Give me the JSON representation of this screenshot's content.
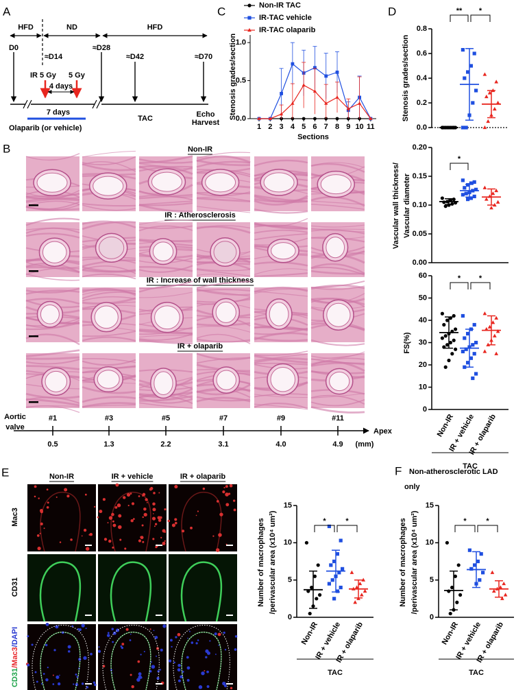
{
  "panel_a": {
    "label": "A",
    "periods": [
      "HFD",
      "ND",
      "HFD"
    ],
    "days": [
      "D0",
      "≈D14",
      "≈D28",
      "≈D42",
      "≈D70"
    ],
    "ir_label": "IR 5 Gy",
    "ir_label_2": "5 Gy",
    "interval": "4 days",
    "duration": "7 days",
    "treatment": "Olaparib (or vehicle)",
    "surgery": "TAC",
    "endpoint": [
      "Echo",
      "Harvest"
    ]
  },
  "panel_b": {
    "label": "B",
    "rows": [
      "Non-IR",
      "IR : Atherosclerosis",
      "IR :  Increase of wall thickness",
      "IR + olaparib"
    ],
    "sections": [
      "#1",
      "#3",
      "#5",
      "#7",
      "#9",
      "#11"
    ],
    "distances": [
      "0.5",
      "1.3",
      "2.2",
      "3.1",
      "4.0",
      "4.9"
    ],
    "unit": "(mm)",
    "start": [
      "Aortic",
      "valve"
    ],
    "end": "Apex"
  },
  "panel_e": {
    "label": "E",
    "columns": [
      "Non-IR",
      "IR + vehicle",
      "IR + olaparib"
    ],
    "rows": [
      "Mac3",
      "CD31",
      "CD31/Mac3/DAPI"
    ],
    "row_colors": [
      "#e8262b",
      "#1fa34a"
    ],
    "merge_colors": [
      "#1fa34a",
      "#e8262b",
      "#2a3ad0"
    ]
  },
  "chart_data": [
    {
      "type": "line",
      "panel": "C",
      "ylabel": "Stenosis grades/section",
      "xlabel": "Sections",
      "xlim": [
        0.2,
        11.5
      ],
      "xticks": [
        1,
        2,
        3,
        4,
        5,
        6,
        7,
        8,
        9,
        10,
        11
      ],
      "x": [
        1,
        2,
        3,
        4,
        5,
        6,
        7,
        8,
        9,
        10,
        11
      ],
      "ylim": [
        0,
        1.1
      ],
      "yticks": [
        {
          "value": 0,
          "label": "0.0"
        },
        {
          "value": 0.5,
          "label": "0.5"
        },
        {
          "value": 1,
          "label": "1.0"
        }
      ],
      "series": [
        {
          "name": "Non-IR TAC",
          "color": "#000000",
          "marker": "circle",
          "values": [
            0,
            0,
            0,
            0,
            0,
            0,
            0,
            0,
            0,
            0,
            0
          ]
        },
        {
          "name": "IR-TAC vehicle",
          "color": "#1f4fe0",
          "marker": "square",
          "values": [
            0,
            0,
            0.33,
            0.72,
            0.6,
            0.67,
            0.56,
            0.61,
            0.11,
            0.28,
            0
          ],
          "errors": [
            0,
            0,
            0.33,
            0.28,
            0.3,
            0.28,
            0.3,
            0.27,
            0.11,
            0.28,
            0
          ]
        },
        {
          "name": "IR-TAC olaparib",
          "color": "#e8261f",
          "marker": "triangle",
          "values": [
            0,
            0,
            0.06,
            0.2,
            0.44,
            0.36,
            0.2,
            0.28,
            0.13,
            0.2,
            0
          ],
          "errors": [
            0,
            0,
            0.12,
            0.26,
            0.3,
            0.3,
            0.25,
            0.2,
            0.13,
            0.35,
            0
          ]
        }
      ]
    },
    {
      "type": "dot",
      "panel": "D",
      "ylabel": [
        "Stenosis grades/section"
      ],
      "baseline": "dotted",
      "ylim": [
        0,
        0.8
      ],
      "yticks": [
        {
          "value": 0,
          "label": "0.0"
        },
        {
          "value": 0.2,
          "label": "0.2"
        },
        {
          "value": 0.4,
          "label": "0.4"
        },
        {
          "value": 0.6,
          "label": "0.6"
        },
        {
          "value": 0.8,
          "label": "0.8"
        }
      ],
      "significance": [
        "**",
        "*"
      ],
      "groups": [
        {
          "color": "#000000",
          "marker": "circle",
          "points": [
            0,
            0,
            0,
            0,
            0,
            0,
            0,
            0,
            0,
            0,
            0
          ],
          "mean": 0,
          "sd": 0
        },
        {
          "color": "#1f4fe0",
          "marker": "square",
          "points": [
            0.63,
            0.6,
            0.5,
            0.45,
            0.4,
            0.3,
            0.2,
            0.1,
            0,
            0
          ],
          "mean": 0.35,
          "sd": 0.29
        },
        {
          "color": "#e8261f",
          "marker": "triangle",
          "points": [
            0.43,
            0.37,
            0.3,
            0.28,
            0.25,
            0.2,
            0.15,
            0.1,
            0.05,
            0
          ],
          "mean": 0.19,
          "sd": 0.11
        }
      ]
    },
    {
      "type": "dot",
      "ylabel": [
        "Vascular wall thickness/",
        "Vascular diameter"
      ],
      "baseline": "solid",
      "ylim": [
        0,
        0.2
      ],
      "yticks": [
        {
          "value": 0,
          "label": "0.00"
        },
        {
          "value": 0.05,
          "label": "0.05"
        },
        {
          "value": 0.1,
          "label": "0.10"
        },
        {
          "value": 0.15,
          "label": "0.15"
        },
        {
          "value": 0.2,
          "label": "0.20"
        }
      ],
      "significance": [
        "*"
      ],
      "groups": [
        {
          "color": "#000000",
          "marker": "circle",
          "points": [
            0.112,
            0.11,
            0.108,
            0.106,
            0.105,
            0.104,
            0.102,
            0.1,
            0.098
          ],
          "mean": 0.106,
          "sd": 0.005
        },
        {
          "color": "#1f4fe0",
          "marker": "square",
          "points": [
            0.143,
            0.14,
            0.138,
            0.135,
            0.13,
            0.127,
            0.125,
            0.122,
            0.12,
            0.118,
            0.115,
            0.112,
            0.11
          ],
          "mean": 0.125,
          "sd": 0.011
        },
        {
          "color": "#e8261f",
          "marker": "triangle",
          "points": [
            0.13,
            0.125,
            0.12,
            0.115,
            0.11,
            0.105,
            0.1,
            0.095
          ],
          "mean": 0.114,
          "sd": 0.014
        }
      ]
    },
    {
      "type": "dot",
      "ylabel": [
        "FS(%)"
      ],
      "baseline": "solid",
      "ylim": [
        0,
        60
      ],
      "yticks": [
        0,
        10,
        20,
        30,
        40,
        50,
        60
      ],
      "significance": [
        "*",
        "*"
      ],
      "categories": [
        "Non-IR",
        "IR + vehicle",
        "IR + olaparib"
      ],
      "group_label": "TAC",
      "groups": [
        {
          "color": "#000000",
          "marker": "circle",
          "points": [
            43,
            42,
            41,
            40,
            38,
            36,
            35,
            34,
            33,
            32,
            31,
            30,
            29,
            28,
            27,
            25,
            22,
            19
          ],
          "mean": 34.5,
          "sd": 7
        },
        {
          "color": "#1f4fe0",
          "marker": "square",
          "points": [
            42,
            38,
            36,
            34,
            32,
            30,
            29,
            28,
            27,
            26,
            25,
            23,
            21,
            19,
            16,
            14
          ],
          "mean": 27.5,
          "sd": 8.5
        },
        {
          "color": "#e8261f",
          "marker": "triangle",
          "points": [
            43,
            41,
            39,
            37,
            36,
            35,
            33,
            31,
            29,
            26,
            25
          ],
          "mean": 35.5,
          "sd": 6.5
        }
      ]
    },
    {
      "type": "dot",
      "ylabel": [
        "Number of macrophages",
        "/perivascular area (x10⁴ um²)"
      ],
      "baseline": "solid",
      "ylim": [
        0,
        15
      ],
      "yticks": [
        0,
        5,
        10,
        15
      ],
      "significance": [
        "*",
        "*"
      ],
      "categories": [
        "Non-IR",
        "IR + vehicle",
        "IR + olaparib"
      ],
      "group_label": "TAC",
      "groups": [
        {
          "color": "#000000",
          "marker": "circle",
          "points": [
            10,
            7,
            5.5,
            4,
            3.5,
            3,
            2.5,
            1.5,
            0.5
          ],
          "mean": 3.7,
          "sd": 2.5
        },
        {
          "color": "#1f4fe0",
          "marker": "square",
          "points": [
            12.2,
            10.3,
            8.5,
            7.5,
            7,
            6.5,
            6,
            5.5,
            5,
            4.5,
            4,
            3.5,
            2.5
          ],
          "mean": 6.2,
          "sd": 2.8
        },
        {
          "color": "#e8261f",
          "marker": "triangle",
          "points": [
            6,
            5,
            4.5,
            4,
            3.8,
            3.5,
            3,
            2.5,
            2
          ],
          "mean": 3.8,
          "sd": 1.2
        }
      ]
    },
    {
      "type": "dot",
      "panel": "F",
      "title": [
        "Non-atherosclerotic LAD",
        "only"
      ],
      "ylabel": [
        "Number of macrophages",
        "/perivascular area (x10⁴ um²)"
      ],
      "baseline": "solid",
      "ylim": [
        0,
        15
      ],
      "yticks": [
        0,
        5,
        10,
        15
      ],
      "significance": [
        "*",
        "*"
      ],
      "categories": [
        "Non-IR",
        "IR + vehicle",
        "IR + olaparib"
      ],
      "group_label": "TAC",
      "groups": [
        {
          "color": "#000000",
          "marker": "circle",
          "points": [
            10,
            7,
            5.5,
            4,
            3.5,
            3,
            2,
            1,
            0.5
          ],
          "mean": 3.6,
          "sd": 2.6
        },
        {
          "color": "#1f4fe0",
          "marker": "square",
          "points": [
            9,
            8.5,
            7.5,
            7,
            6.5,
            6,
            5,
            4.5
          ],
          "mean": 6.4,
          "sd": 2.4
        },
        {
          "color": "#e8261f",
          "marker": "triangle",
          "points": [
            6,
            4.5,
            4,
            3.8,
            3.5,
            3,
            2.5
          ],
          "mean": 3.8,
          "sd": 1.1
        }
      ]
    }
  ]
}
